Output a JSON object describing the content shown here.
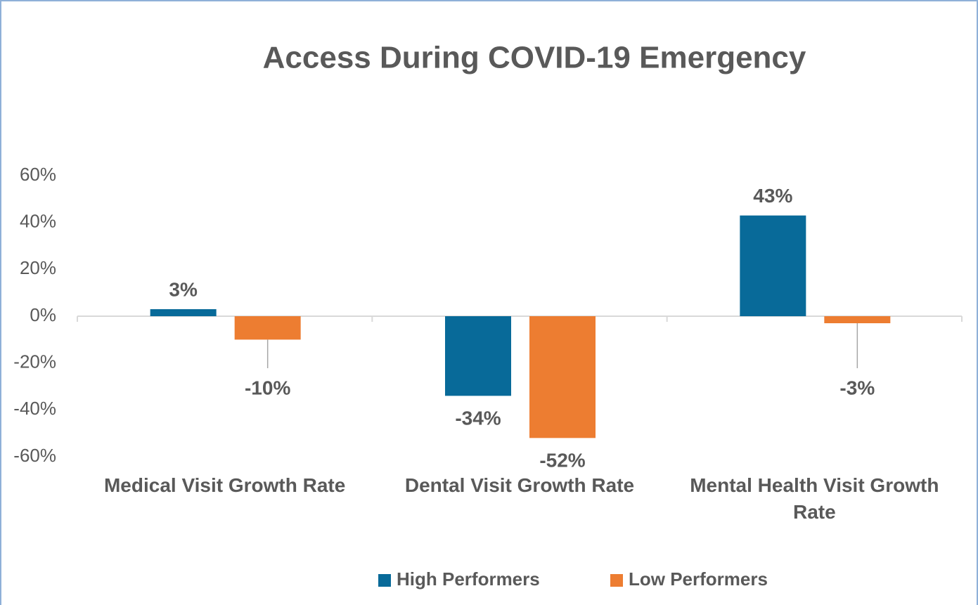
{
  "chart_data": {
    "type": "bar",
    "title": "Access During COVID-19 Emergency",
    "categories": [
      "Medical Visit Growth Rate",
      "Dental Visit Growth Rate",
      "Mental Health Visit Growth Rate"
    ],
    "series": [
      {
        "name": "High Performers",
        "color": "#086a99",
        "values": [
          3,
          -34,
          43
        ],
        "value_labels": [
          "3%",
          "-34%",
          "43%"
        ]
      },
      {
        "name": "Low Performers",
        "color": "#ed7d31",
        "values": [
          -10,
          -52,
          -3
        ],
        "value_labels": [
          "-10%",
          "-52%",
          "-3%"
        ]
      }
    ],
    "ylim": [
      -60,
      60
    ],
    "yticks": [
      {
        "value": -60,
        "label": "-60%"
      },
      {
        "value": -40,
        "label": "-40%"
      },
      {
        "value": -20,
        "label": "-20%"
      },
      {
        "value": 0,
        "label": "0%"
      },
      {
        "value": 20,
        "label": "20%"
      },
      {
        "value": 40,
        "label": "40%"
      },
      {
        "value": 60,
        "label": "60%"
      }
    ],
    "grid": false,
    "legend": "bottom"
  }
}
